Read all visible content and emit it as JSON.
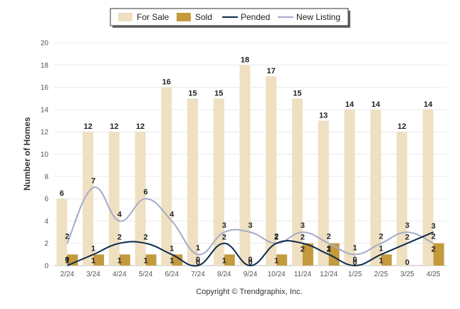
{
  "chart_data": {
    "type": "bar",
    "categories": [
      "2/24",
      "3/24",
      "4/24",
      "5/24",
      "6/24",
      "7/24",
      "8/24",
      "9/24",
      "10/24",
      "11/24",
      "12/24",
      "1/25",
      "2/25",
      "3/25",
      "4/25"
    ],
    "series": [
      {
        "name": "For Sale",
        "kind": "bar",
        "color": "#efe0c2",
        "values": [
          6,
          12,
          12,
          12,
          16,
          15,
          15,
          18,
          17,
          15,
          13,
          14,
          14,
          12,
          14
        ]
      },
      {
        "name": "Sold",
        "kind": "bar",
        "color": "#c49a3e",
        "values": [
          1,
          1,
          1,
          1,
          1,
          0,
          1,
          0,
          1,
          2,
          2,
          0,
          1,
          0,
          2
        ]
      },
      {
        "name": "Pended",
        "kind": "line",
        "color": "#0c2a4a",
        "values": [
          0,
          1,
          2,
          2,
          1,
          0,
          2,
          0,
          2,
          2,
          1,
          0,
          1,
          2,
          3
        ]
      },
      {
        "name": "New Listing",
        "kind": "line",
        "color": "#a4acc6",
        "values": [
          2,
          7,
          4,
          6,
          4,
          1,
          3,
          3,
          2,
          3,
          2,
          1,
          2,
          3,
          2
        ]
      }
    ],
    "ylabel": "Number of Homes",
    "ylim": [
      0,
      20
    ],
    "yticks": [
      0,
      2,
      4,
      6,
      8,
      10,
      12,
      14,
      16,
      18,
      20
    ],
    "grid": true,
    "legend_position": "top-center"
  },
  "copyright": "Copyright © Trendgraphix, Inc."
}
